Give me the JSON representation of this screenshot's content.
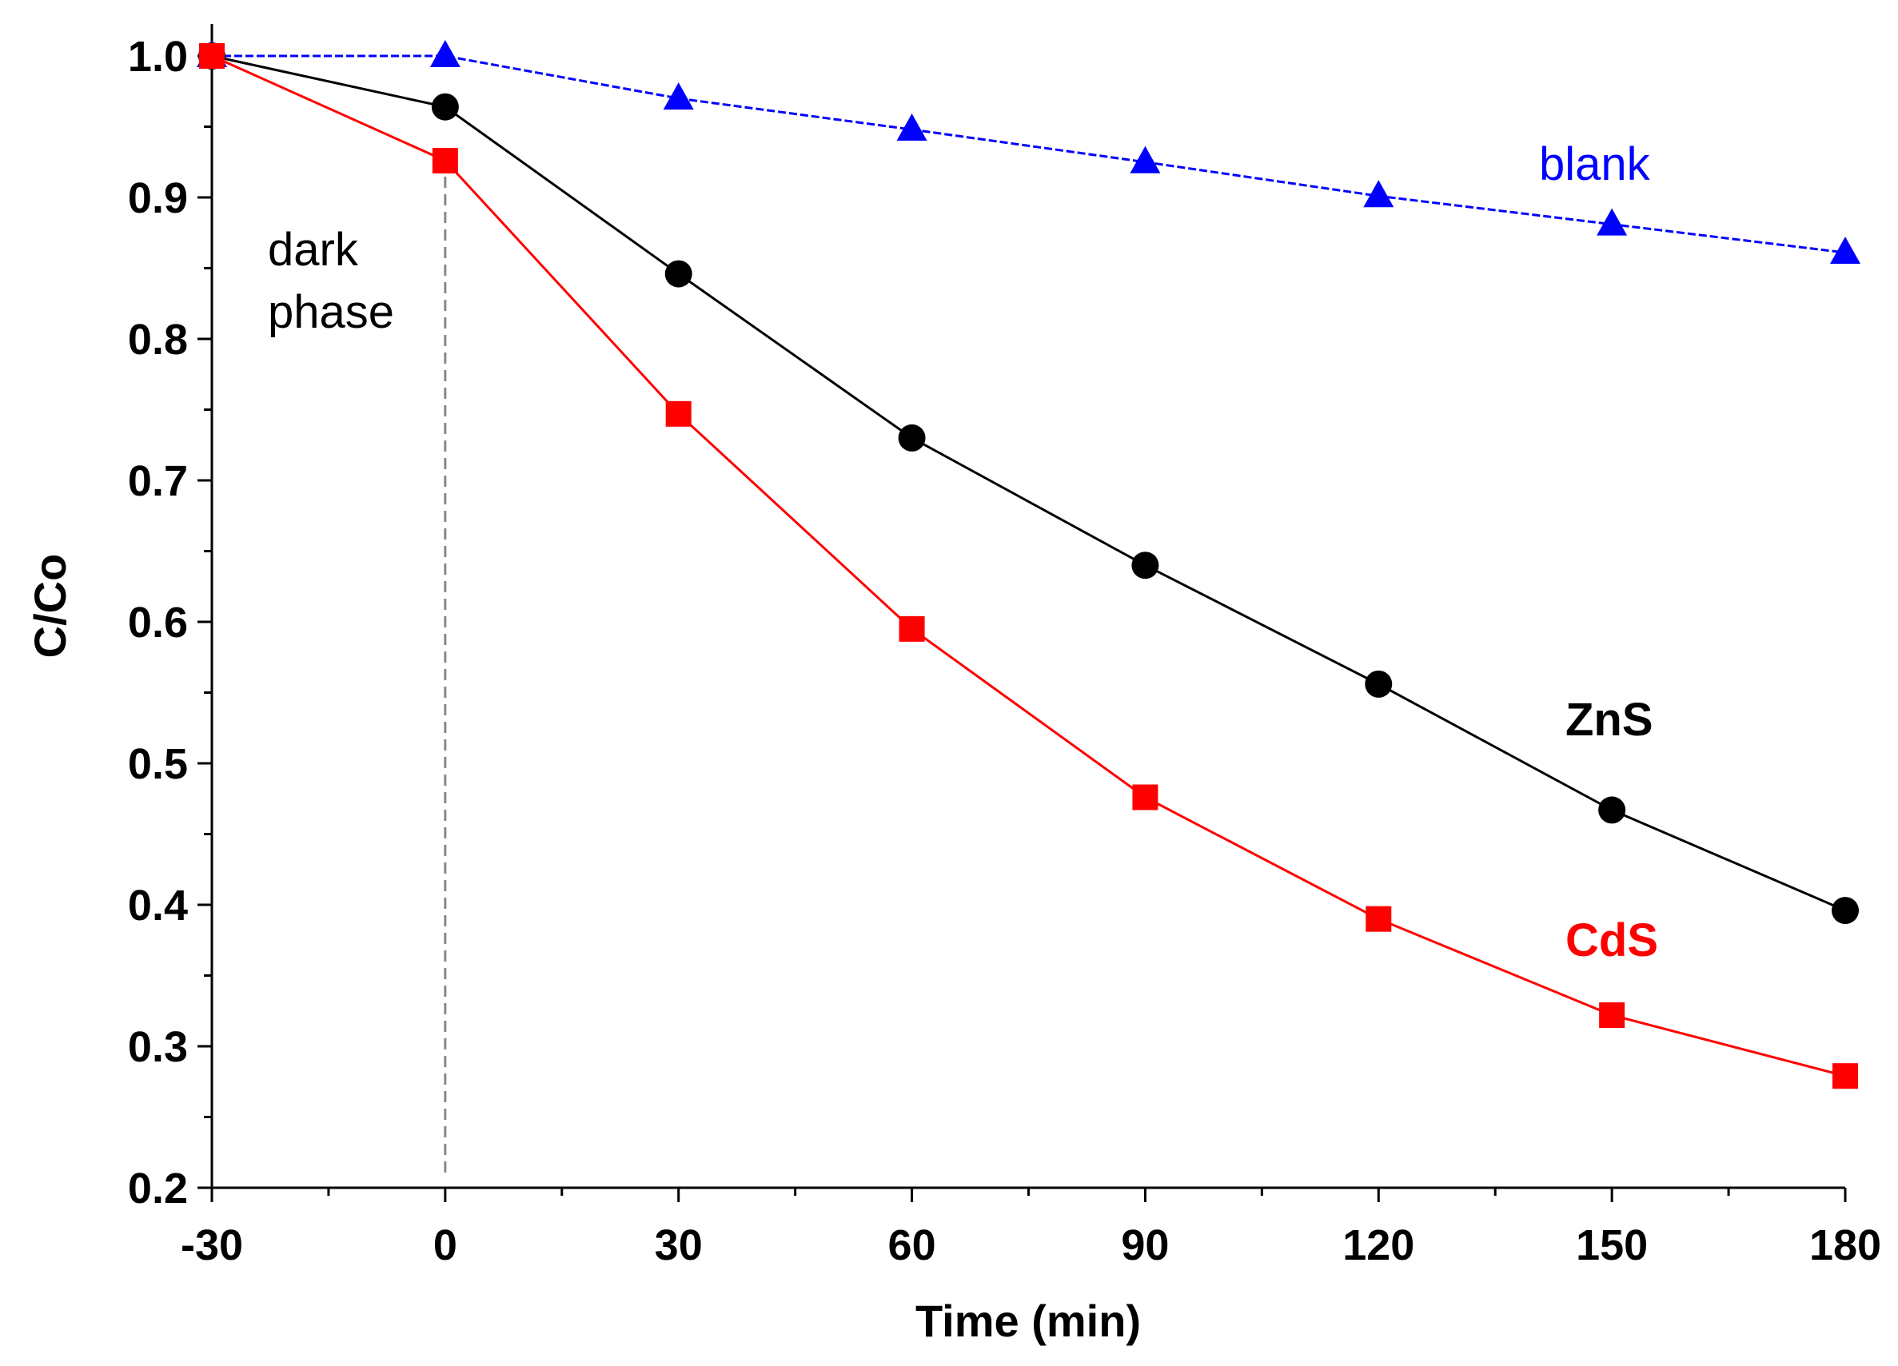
{
  "chart_data": {
    "type": "line",
    "title": "",
    "xlabel": "Time (min)",
    "ylabel": "C/Co",
    "xlim": [
      -30,
      180
    ],
    "ylim": [
      0.2,
      1.0
    ],
    "x_ticks": [
      -30,
      0,
      30,
      60,
      90,
      120,
      150,
      180
    ],
    "x_tick_labels": [
      "-30",
      "0",
      "30",
      "60",
      "90",
      "120",
      "150",
      "180"
    ],
    "y_ticks": [
      0.2,
      0.3,
      0.4,
      0.5,
      0.6,
      0.7,
      0.8,
      0.9,
      1.0
    ],
    "y_tick_labels": [
      "0.2",
      "0.3",
      "0.4",
      "0.5",
      "0.6",
      "0.7",
      "0.8",
      "0.9",
      "1.0"
    ],
    "grid": false,
    "x": [
      -30,
      0,
      30,
      60,
      90,
      120,
      150,
      180
    ],
    "series": [
      {
        "name": "blank",
        "color": "#0000ff",
        "marker": "triangle",
        "line_style": "dashed",
        "values": [
          1.0,
          1.0,
          0.97,
          0.948,
          0.925,
          0.901,
          0.881,
          0.861
        ]
      },
      {
        "name": "ZnS",
        "color": "#000000",
        "marker": "circle",
        "line_style": "solid",
        "values": [
          1.0,
          0.964,
          0.846,
          0.73,
          0.64,
          0.556,
          0.467,
          0.396
        ]
      },
      {
        "name": "CdS",
        "color": "#ff0000",
        "marker": "square",
        "line_style": "solid",
        "values": [
          1.0,
          0.926,
          0.747,
          0.595,
          0.476,
          0.39,
          0.322,
          0.279
        ]
      }
    ],
    "annotations": {
      "dark_phase_line_x": 0,
      "dark_phase_text": [
        "dark",
        "phase"
      ],
      "blank_label": "blank",
      "zns_label": "ZnS",
      "cds_label": "CdS"
    }
  }
}
